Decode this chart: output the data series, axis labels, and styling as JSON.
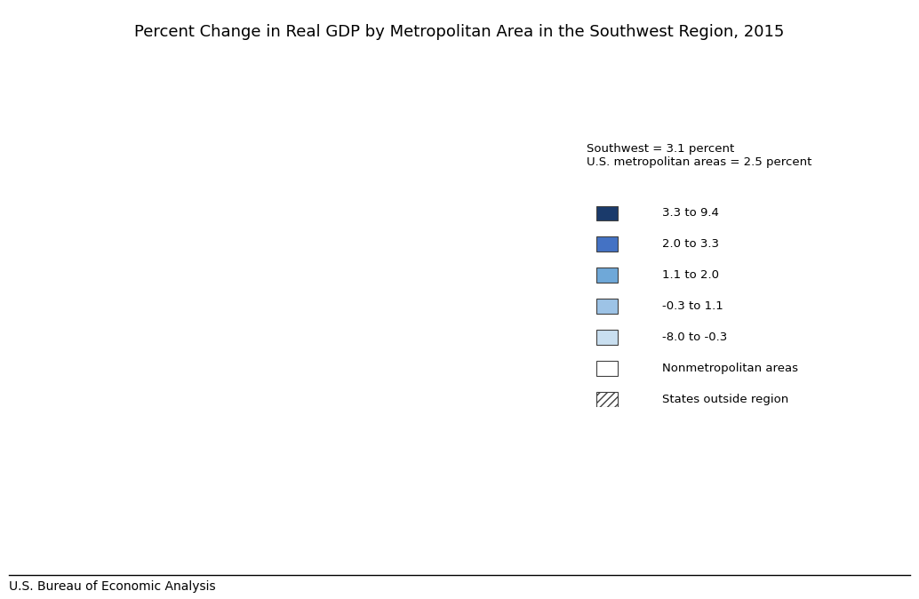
{
  "title": "Percent Change in Real GDP by Metropolitan Area in the Southwest Region, 2015",
  "footer": "U.S. Bureau of Economic Analysis",
  "legend_header": "Southwest = 3.1 percent\nU.S. metropolitan areas = 2.5 percent",
  "legend_items": [
    {
      "label": "3.3 to 9.4",
      "color": "#1a3a6b"
    },
    {
      "label": "2.0 to 3.3",
      "color": "#4472c4"
    },
    {
      "label": "1.1 to 2.0",
      "color": "#6fa8d8"
    },
    {
      "label": "-0.3 to 1.1",
      "color": "#9dc3e6"
    },
    {
      "label": "-8.0 to -0.3",
      "color": "#c9dff0"
    },
    {
      "label": "Nonmetropolitan areas",
      "color": "#ffffff"
    },
    {
      "label": "States outside region",
      "color": "hatch"
    }
  ],
  "background_color": "#ffffff",
  "border_color": "#808080",
  "title_fontsize": 13,
  "footer_fontsize": 10
}
